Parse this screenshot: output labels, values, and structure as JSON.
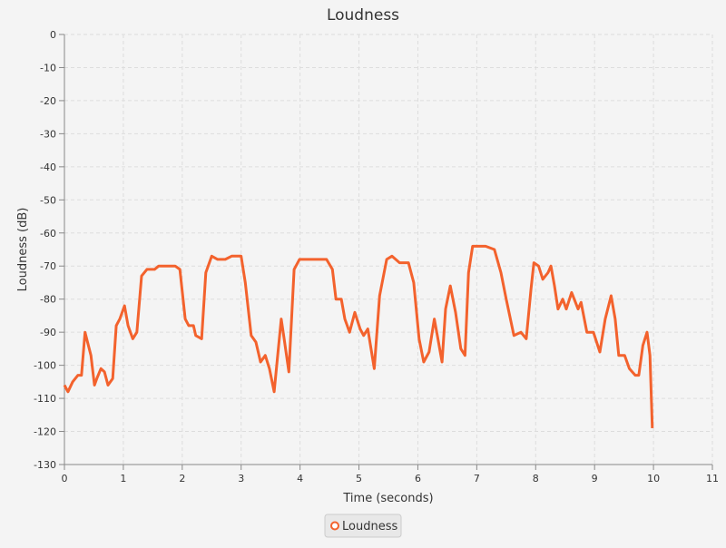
{
  "chart_data": {
    "type": "line",
    "title": "Loudness",
    "x_label": "Time (seconds)",
    "y_label": "Loudness (dB)",
    "xlim": [
      0,
      11
    ],
    "ylim": [
      -130,
      0
    ],
    "xticks": [
      0,
      1,
      2,
      3,
      4,
      5,
      6,
      7,
      8,
      9,
      10,
      11
    ],
    "yticks": [
      0,
      -10,
      -20,
      -30,
      -40,
      -50,
      -60,
      -70,
      -80,
      -90,
      -100,
      -110,
      -120,
      -130
    ],
    "grid": true,
    "legend": "bottom",
    "series": [
      {
        "name": "Loudness",
        "color": "#f3622d",
        "x": [
          0,
          0.06,
          0.14,
          0.23,
          0.29,
          0.35,
          0.45,
          0.51,
          0.55,
          0.62,
          0.68,
          0.74,
          0.82,
          0.88,
          0.94,
          1.02,
          1.08,
          1.16,
          1.23,
          1.31,
          1.4,
          1.53,
          1.6,
          1.68,
          1.8,
          1.88,
          1.96,
          2.05,
          2.11,
          2.19,
          2.23,
          2.33,
          2.4,
          2.5,
          2.6,
          2.73,
          2.84,
          2.94,
          3.0,
          3.07,
          3.17,
          3.25,
          3.33,
          3.41,
          3.48,
          3.56,
          3.62,
          3.68,
          3.73,
          3.81,
          3.9,
          3.99,
          4.1,
          4.22,
          4.33,
          4.45,
          4.55,
          4.61,
          4.7,
          4.76,
          4.84,
          4.93,
          5.02,
          5.08,
          5.15,
          5.26,
          5.35,
          5.47,
          5.56,
          5.69,
          5.84,
          5.93,
          6.02,
          6.1,
          6.19,
          6.28,
          6.33,
          6.41,
          6.47,
          6.55,
          6.64,
          6.73,
          6.8,
          6.86,
          6.93,
          7.03,
          7.15,
          7.3,
          7.41,
          7.5,
          7.63,
          7.75,
          7.84,
          7.92,
          7.97,
          8.05,
          8.12,
          8.21,
          8.26,
          8.32,
          8.38,
          8.46,
          8.52,
          8.61,
          8.72,
          8.77,
          8.87,
          8.98,
          9.09,
          9.18,
          9.28,
          9.35,
          9.41,
          9.51,
          9.59,
          9.69,
          9.75,
          9.82,
          9.89,
          9.94,
          9.98
        ],
        "values": [
          -106,
          -108,
          -105,
          -103,
          -103,
          -90,
          -97,
          -106,
          -104,
          -101,
          -102,
          -106,
          -104,
          -88,
          -86,
          -82,
          -88,
          -92,
          -90,
          -73,
          -71,
          -71,
          -70,
          -70,
          -70,
          -70,
          -71,
          -86,
          -88,
          -88,
          -91,
          -92,
          -72,
          -67,
          -68,
          -68,
          -67,
          -67,
          -67,
          -75,
          -91,
          -93,
          -99,
          -97,
          -101,
          -108,
          -97,
          -86,
          -92,
          -102,
          -71,
          -68,
          -68,
          -68,
          -68,
          -68,
          -71,
          -80,
          -80,
          -86,
          -90,
          -84,
          -89,
          -91,
          -89,
          -101,
          -79,
          -68,
          -67,
          -69,
          -69,
          -75,
          -92,
          -99,
          -96,
          -86,
          -91,
          -99,
          -83,
          -76,
          -84,
          -95,
          -97,
          -72,
          -64,
          -64,
          -64,
          -65,
          -72,
          -80,
          -91,
          -90,
          -92,
          -77,
          -69,
          -70,
          -74,
          -72,
          -70,
          -76,
          -83,
          -80,
          -83,
          -78,
          -83,
          -81,
          -90,
          -90,
          -96,
          -86,
          -79,
          -86,
          -97,
          -97,
          -101,
          -103,
          -103,
          -94,
          -90,
          -97,
          -119
        ]
      }
    ]
  }
}
